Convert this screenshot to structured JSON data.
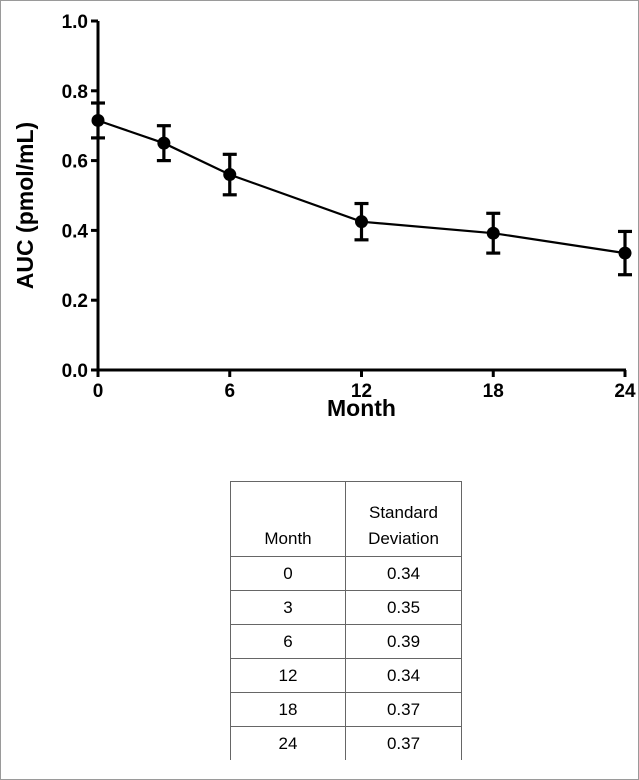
{
  "chart_data": {
    "type": "line",
    "title": "",
    "xlabel": "Month",
    "ylabel": "AUC (pmol/mL)",
    "xlim": [
      0,
      24
    ],
    "ylim": [
      0.0,
      1.0
    ],
    "xticks": [
      "0",
      "6",
      "12",
      "18",
      "24"
    ],
    "yticks": [
      "0.0",
      "0.2",
      "0.4",
      "0.6",
      "0.8",
      "1.0"
    ],
    "grid": false,
    "legend": "none",
    "series": [
      {
        "x": [
          0,
          3,
          6,
          12,
          18,
          24
        ],
        "y": [
          0.715,
          0.65,
          0.56,
          0.425,
          0.392,
          0.335
        ],
        "error": [
          0.05,
          0.05,
          0.058,
          0.052,
          0.057,
          0.062
        ]
      }
    ]
  },
  "table": {
    "headers": [
      "Month",
      "Standard Deviation"
    ],
    "rows": [
      [
        "0",
        "0.34"
      ],
      [
        "3",
        "0.35"
      ],
      [
        "6",
        "0.39"
      ],
      [
        "12",
        "0.34"
      ],
      [
        "18",
        "0.37"
      ],
      [
        "24",
        "0.37"
      ]
    ]
  }
}
